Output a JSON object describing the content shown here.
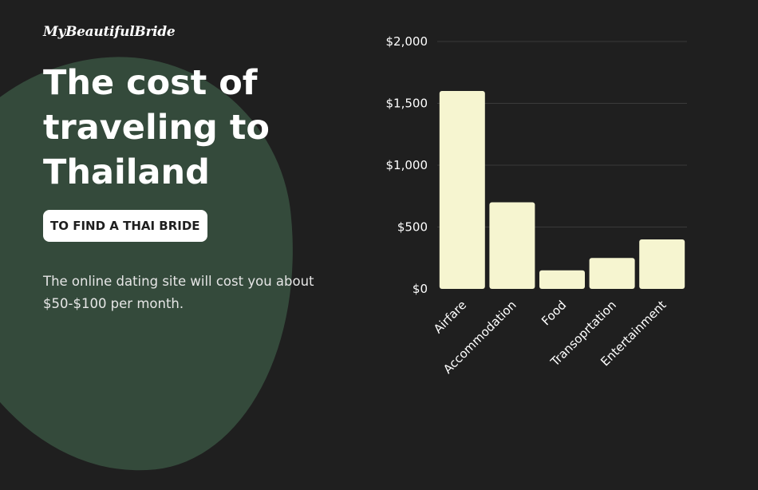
{
  "brand": {
    "logo": "MyBeautifulBride"
  },
  "headline": {
    "title": "The cost of traveling to Thailand"
  },
  "badge": {
    "label": "TO FIND A THAI BRIDE"
  },
  "description": {
    "text": "The online dating site will cost you about $50-$100 per month."
  },
  "colors": {
    "background": "#1f1f1f",
    "blob": "#344a3b",
    "bar": "#f6f5d0",
    "grid": "#3a3a3a"
  },
  "chart_data": {
    "type": "bar",
    "categories": [
      "Airfare",
      "Accommodation",
      "Food",
      "Transoprtation",
      "Entertainment"
    ],
    "values": [
      1600,
      700,
      150,
      250,
      400
    ],
    "ylim": [
      0,
      2000
    ],
    "yticks": [
      {
        "value": 0,
        "label": "$0"
      },
      {
        "value": 500,
        "label": "$500"
      },
      {
        "value": 1000,
        "label": "$1,000"
      },
      {
        "value": 1500,
        "label": "$1,500"
      },
      {
        "value": 2000,
        "label": "$2,000"
      }
    ],
    "grid": true,
    "legend": "none"
  }
}
